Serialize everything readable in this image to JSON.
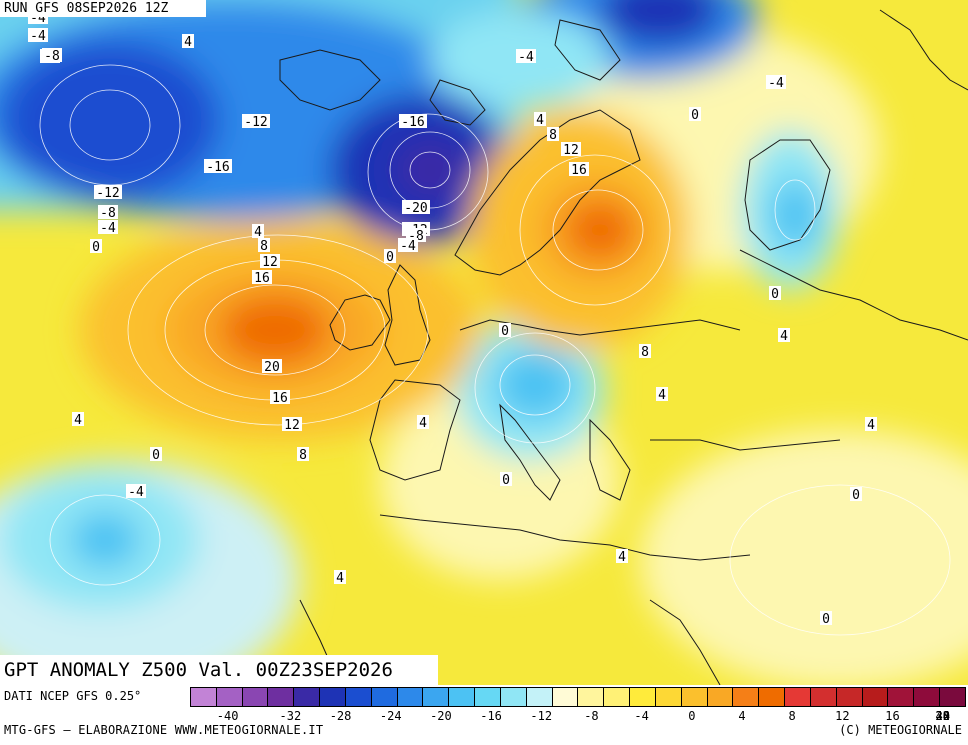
{
  "header": {
    "run_label": "RUN GFS 08SEP2026 12Z"
  },
  "title": "GPT ANOMALY Z500 Val. 00Z23SEP2026",
  "footer": {
    "data_source": "DATI NCEP GFS 0.25°",
    "credit": "MTG-GFS – ELABORAZIONE WWW.METEOGIORNALE.IT",
    "copyright": "(C) METEOGIORNALE"
  },
  "legend": {
    "colors": [
      "#c283d6",
      "#a461c4",
      "#8a46b2",
      "#6e2fa0",
      "#3a2aa6",
      "#1e33b5",
      "#1b4ed0",
      "#1f6be0",
      "#2d89ea",
      "#3ba6f0",
      "#4cc2f3",
      "#66d8f4",
      "#90e6f5",
      "#c4f2f8",
      "#fffbd6",
      "#fff59d",
      "#fff176",
      "#ffeb3b",
      "#fdd835",
      "#fbc02d",
      "#f9a825",
      "#f57f17",
      "#ef6c00",
      "#e53935",
      "#d32f2f",
      "#c62828",
      "#b71c1c",
      "#a01339",
      "#8e0b3b",
      "#7a0a3d"
    ],
    "ticks": [
      "-40",
      "-32",
      "-28",
      "-24",
      "-20",
      "-16",
      "-12",
      "-8",
      "-4",
      "0",
      "4",
      "8",
      "12",
      "16",
      "20",
      "24",
      "28",
      "32",
      "40"
    ]
  },
  "map": {
    "contour_labels": [
      "-4",
      "-8",
      "4",
      "-4",
      "-8",
      "-4",
      "-12",
      "-16",
      "-16",
      "-12",
      "-8",
      "-4",
      "0",
      "-20",
      "-12",
      "-8",
      "-4",
      "0",
      "4",
      "8",
      "12",
      "16",
      "4",
      "8",
      "12",
      "16",
      "0",
      "-4",
      "-4",
      "0",
      "4",
      "20",
      "16",
      "12",
      "8",
      "4",
      "0",
      "-4",
      "8",
      "4",
      "0",
      "4",
      "4",
      "0",
      "0",
      "4",
      "0",
      "4"
    ]
  }
}
